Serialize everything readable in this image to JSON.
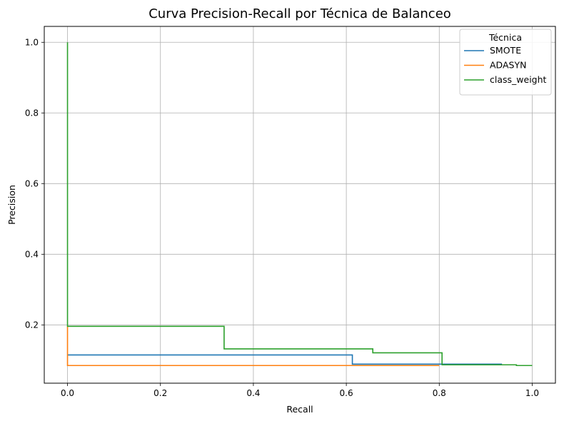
{
  "chart_data": {
    "type": "line",
    "title": "Curva Precision-Recall por Técnica de Balanceo",
    "xlabel": "Recall",
    "ylabel": "Precision",
    "xlim": [
      -0.05,
      1.05
    ],
    "ylim": [
      0.035,
      1.045
    ],
    "xticks": [
      0.0,
      0.2,
      0.4,
      0.6,
      0.8,
      1.0
    ],
    "xtick_labels": [
      "0.0",
      "0.2",
      "0.4",
      "0.6",
      "0.8",
      "1.0"
    ],
    "yticks": [
      0.2,
      0.4,
      0.6,
      0.8,
      1.0
    ],
    "ytick_labels": [
      "0.2",
      "0.4",
      "0.6",
      "0.8",
      "1.0"
    ],
    "grid": true,
    "legend": {
      "title": "Técnica",
      "placement": "top-right"
    },
    "series": [
      {
        "name": "SMOTE",
        "color": "#1f77b4",
        "step": true,
        "x": [
          0.0,
          0.613,
          0.613,
          0.935
        ],
        "y": [
          0.115,
          0.115,
          0.089,
          0.089
        ]
      },
      {
        "name": "ADASYN",
        "color": "#ff7f0e",
        "step": true,
        "x": [
          0.0,
          0.0,
          0.8
        ],
        "y": [
          0.195,
          0.085,
          0.085
        ]
      },
      {
        "name": "class_weight",
        "color": "#2ca02c",
        "step": true,
        "x": [
          0.0,
          0.0,
          0.337,
          0.337,
          0.657,
          0.657,
          0.806,
          0.806,
          0.966,
          0.966,
          1.0
        ],
        "y": [
          1.0,
          0.196,
          0.196,
          0.132,
          0.132,
          0.121,
          0.121,
          0.087,
          0.087,
          0.085,
          0.085
        ]
      }
    ]
  }
}
